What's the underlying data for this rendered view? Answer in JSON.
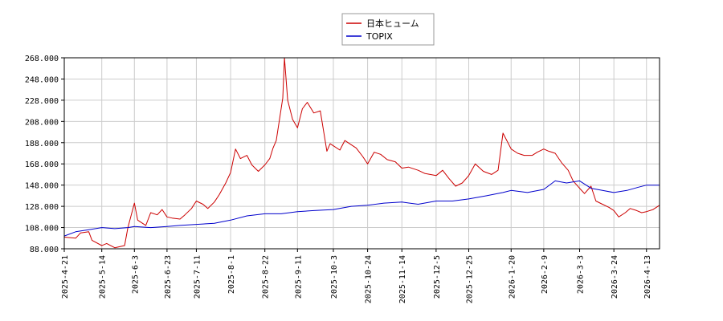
{
  "chart_data": {
    "type": "line",
    "title": "",
    "xlabel": "",
    "ylabel": "",
    "ylim": [
      88,
      268
    ],
    "yticks": [
      "88.000",
      "108.000",
      "128.000",
      "148.000",
      "168.000",
      "188.000",
      "208.000",
      "228.000",
      "248.000",
      "268.000"
    ],
    "xticks": [
      "2025-4-21",
      "2025-5-14",
      "2025-6-3",
      "2025-6-23",
      "2025-7-11",
      "2025-8-1",
      "2025-8-22",
      "2025-9-11",
      "2025-10-3",
      "2025-10-24",
      "2025-11-14",
      "2025-12-5",
      "2025-12-25",
      "2026-1-20",
      "2026-2-9",
      "2026-3-3",
      "2026-3-24",
      "2026-4-13"
    ],
    "grid": true,
    "legend": "top-center",
    "series": [
      {
        "name": "日本ヒューム",
        "color": "#cc0000",
        "points": [
          [
            "2025-4-21",
            99
          ],
          [
            "2025-4-28",
            98
          ],
          [
            "2025-5-1",
            103
          ],
          [
            "2025-5-6",
            104
          ],
          [
            "2025-5-8",
            96
          ],
          [
            "2025-5-14",
            91
          ],
          [
            "2025-5-17",
            93
          ],
          [
            "2025-5-22",
            89
          ],
          [
            "2025-5-28",
            91
          ],
          [
            "2025-5-30",
            108
          ],
          [
            "2025-6-3",
            131
          ],
          [
            "2025-6-5",
            115
          ],
          [
            "2025-6-10",
            110
          ],
          [
            "2025-6-13",
            122
          ],
          [
            "2025-6-17",
            120
          ],
          [
            "2025-6-20",
            125
          ],
          [
            "2025-6-23",
            118
          ],
          [
            "2025-6-26",
            117
          ],
          [
            "2025-7-1",
            116
          ],
          [
            "2025-7-4",
            120
          ],
          [
            "2025-7-8",
            126
          ],
          [
            "2025-7-11",
            133
          ],
          [
            "2025-7-15",
            130
          ],
          [
            "2025-7-18",
            126
          ],
          [
            "2025-7-22",
            132
          ],
          [
            "2025-7-25",
            139
          ],
          [
            "2025-7-29",
            150
          ],
          [
            "2025-8-1",
            160
          ],
          [
            "2025-8-4",
            182
          ],
          [
            "2025-8-7",
            173
          ],
          [
            "2025-8-11",
            176
          ],
          [
            "2025-8-14",
            167
          ],
          [
            "2025-8-18",
            161
          ],
          [
            "2025-8-22",
            167
          ],
          [
            "2025-8-25",
            173
          ],
          [
            "2025-8-27",
            183
          ],
          [
            "2025-8-29",
            190
          ],
          [
            "2025-9-2",
            230
          ],
          [
            "2025-9-3",
            268
          ],
          [
            "2025-9-5",
            228
          ],
          [
            "2025-9-8",
            210
          ],
          [
            "2025-9-11",
            202
          ],
          [
            "2025-9-14",
            220
          ],
          [
            "2025-9-17",
            226
          ],
          [
            "2025-9-21",
            216
          ],
          [
            "2025-9-25",
            218
          ],
          [
            "2025-9-29",
            180
          ],
          [
            "2025-10-1",
            187
          ],
          [
            "2025-10-3",
            185
          ],
          [
            "2025-10-7",
            181
          ],
          [
            "2025-10-10",
            190
          ],
          [
            "2025-10-14",
            186
          ],
          [
            "2025-10-17",
            183
          ],
          [
            "2025-10-21",
            175
          ],
          [
            "2025-10-24",
            168
          ],
          [
            "2025-10-28",
            179
          ],
          [
            "2025-11-1",
            177
          ],
          [
            "2025-11-5",
            172
          ],
          [
            "2025-11-10",
            170
          ],
          [
            "2025-11-14",
            164
          ],
          [
            "2025-11-18",
            165
          ],
          [
            "2025-11-24",
            162
          ],
          [
            "2025-11-28",
            159
          ],
          [
            "2025-12-5",
            157
          ],
          [
            "2025-12-9",
            162
          ],
          [
            "2025-12-13",
            154
          ],
          [
            "2025-12-17",
            147
          ],
          [
            "2025-12-21",
            150
          ],
          [
            "2025-12-25",
            157
          ],
          [
            "2025-12-29",
            168
          ],
          [
            "2026-1-3",
            161
          ],
          [
            "2026-1-8",
            158
          ],
          [
            "2026-1-12",
            162
          ],
          [
            "2026-1-15",
            197
          ],
          [
            "2026-1-20",
            182
          ],
          [
            "2026-1-24",
            178
          ],
          [
            "2026-1-28",
            176
          ],
          [
            "2026-2-2",
            176
          ],
          [
            "2026-2-5",
            179
          ],
          [
            "2026-2-9",
            182
          ],
          [
            "2026-2-12",
            180
          ],
          [
            "2026-2-16",
            178
          ],
          [
            "2026-2-20",
            169
          ],
          [
            "2026-2-24",
            162
          ],
          [
            "2026-2-27",
            152
          ],
          [
            "2026-3-3",
            145
          ],
          [
            "2026-3-6",
            140
          ],
          [
            "2026-3-10",
            147
          ],
          [
            "2026-3-13",
            133
          ],
          [
            "2026-3-17",
            130
          ],
          [
            "2026-3-21",
            127
          ],
          [
            "2026-3-24",
            124
          ],
          [
            "2026-3-27",
            118
          ],
          [
            "2026-3-31",
            122
          ],
          [
            "2026-4-3",
            126
          ],
          [
            "2026-4-7",
            124
          ],
          [
            "2026-4-10",
            122
          ],
          [
            "2026-4-13",
            123
          ],
          [
            "2026-4-17",
            125
          ],
          [
            "2026-4-21",
            129
          ]
        ]
      },
      {
        "name": "TOPIX",
        "color": "#0000cc",
        "points": [
          [
            "2025-4-21",
            100
          ],
          [
            "2025-4-28",
            104
          ],
          [
            "2025-5-6",
            106
          ],
          [
            "2025-5-14",
            108
          ],
          [
            "2025-5-22",
            107
          ],
          [
            "2025-5-30",
            108
          ],
          [
            "2025-6-3",
            109
          ],
          [
            "2025-6-13",
            108
          ],
          [
            "2025-6-23",
            109
          ],
          [
            "2025-7-1",
            110
          ],
          [
            "2025-7-11",
            111
          ],
          [
            "2025-7-22",
            112
          ],
          [
            "2025-8-1",
            115
          ],
          [
            "2025-8-11",
            119
          ],
          [
            "2025-8-22",
            121
          ],
          [
            "2025-9-1",
            121
          ],
          [
            "2025-9-11",
            123
          ],
          [
            "2025-9-21",
            124
          ],
          [
            "2025-10-3",
            125
          ],
          [
            "2025-10-14",
            128
          ],
          [
            "2025-10-24",
            129
          ],
          [
            "2025-11-3",
            131
          ],
          [
            "2025-11-14",
            132
          ],
          [
            "2025-11-24",
            130
          ],
          [
            "2025-12-5",
            133
          ],
          [
            "2025-12-15",
            133
          ],
          [
            "2025-12-25",
            135
          ],
          [
            "2026-1-5",
            138
          ],
          [
            "2026-1-15",
            141
          ],
          [
            "2026-1-20",
            143
          ],
          [
            "2026-1-30",
            141
          ],
          [
            "2026-2-9",
            144
          ],
          [
            "2026-2-16",
            152
          ],
          [
            "2026-2-23",
            150
          ],
          [
            "2026-3-3",
            152
          ],
          [
            "2026-3-10",
            145
          ],
          [
            "2026-3-17",
            143
          ],
          [
            "2026-3-24",
            141
          ],
          [
            "2026-4-1",
            143
          ],
          [
            "2026-4-8",
            146
          ],
          [
            "2026-4-13",
            148
          ],
          [
            "2026-4-21",
            148
          ]
        ]
      }
    ]
  }
}
